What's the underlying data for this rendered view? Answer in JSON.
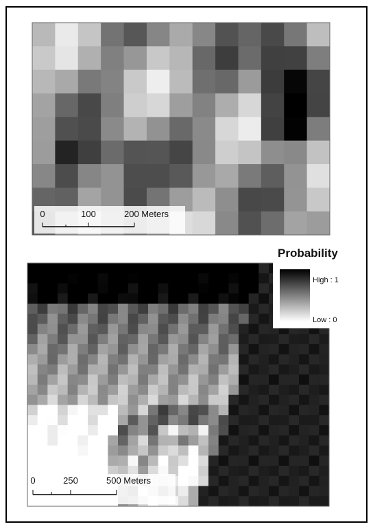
{
  "top_map": {
    "scale_labels": [
      "0",
      "100",
      "200 Meters"
    ]
  },
  "bottom_map": {
    "scale_labels": [
      "0",
      "250",
      "500 Meters"
    ]
  },
  "legend": {
    "title": "Probability",
    "high_label": "High : 1",
    "low_label": "Low : 0"
  }
}
